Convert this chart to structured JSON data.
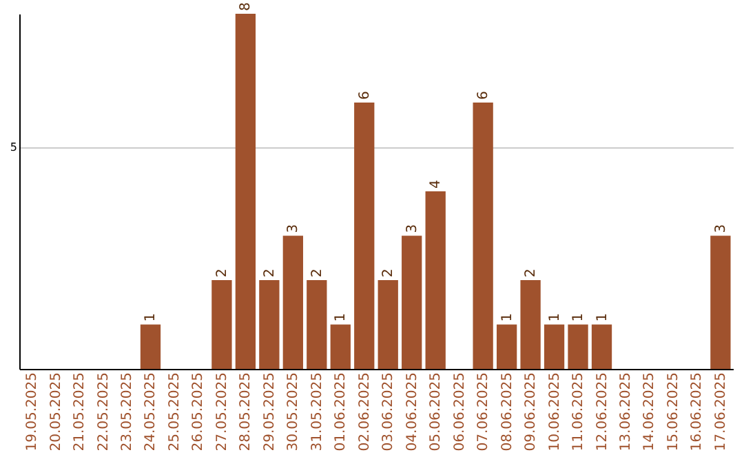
{
  "chart_data": {
    "type": "bar",
    "categories": [
      "19.05.2025",
      "20.05.2025",
      "21.05.2025",
      "22.05.2025",
      "23.05.2025",
      "24.05.2025",
      "25.05.2025",
      "26.05.2025",
      "27.05.2025",
      "28.05.2025",
      "29.05.2025",
      "30.05.2025",
      "31.05.2025",
      "01.06.2025",
      "02.06.2025",
      "03.06.2025",
      "04.06.2025",
      "05.06.2025",
      "06.06.2025",
      "07.06.2025",
      "08.06.2025",
      "09.06.2025",
      "10.06.2025",
      "11.06.2025",
      "12.06.2025",
      "13.06.2025",
      "14.06.2025",
      "15.06.2025",
      "16.06.2025",
      "17.06.2025"
    ],
    "values": [
      0,
      0,
      0,
      0,
      0,
      1,
      0,
      0,
      2,
      8,
      2,
      3,
      2,
      1,
      6,
      2,
      3,
      4,
      0,
      6,
      1,
      2,
      1,
      1,
      1,
      0,
      0,
      0,
      0,
      3
    ],
    "value_labels": [
      null,
      null,
      null,
      null,
      null,
      "1",
      null,
      null,
      "2",
      "8",
      "2",
      "3",
      "2",
      "1",
      "6",
      "2",
      "3",
      "4",
      null,
      "6",
      "1",
      "2",
      "1",
      "1",
      "1",
      null,
      null,
      null,
      null,
      "3"
    ],
    "color": "#a0522d",
    "ylim": [
      0,
      8
    ],
    "yticks": [
      5
    ],
    "grid": "y"
  }
}
